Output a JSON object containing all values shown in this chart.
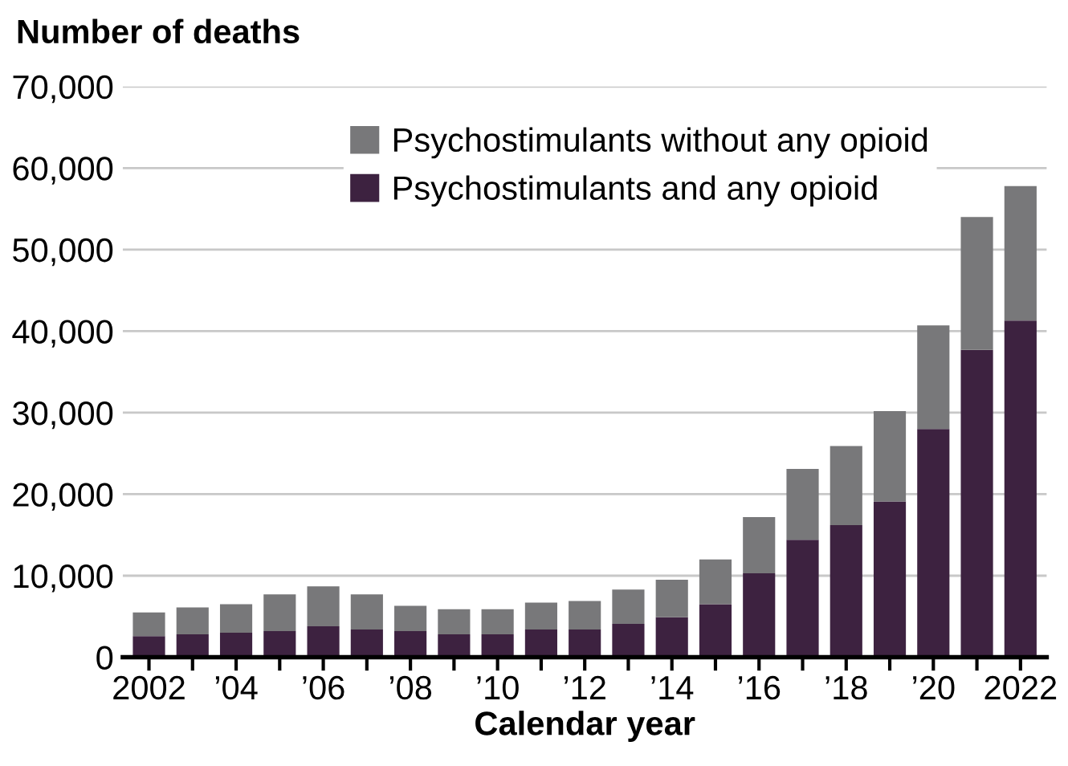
{
  "chart_data": {
    "type": "bar",
    "stacked": true,
    "ylabel": "Number of deaths",
    "xlabel": "Calendar year",
    "categories": [
      "2002",
      null,
      "’04",
      null,
      "’06",
      null,
      "’08",
      null,
      "’10",
      null,
      "’12",
      null,
      "’14",
      null,
      "’16",
      null,
      "’18",
      null,
      "’20",
      null,
      "2022"
    ],
    "series": [
      {
        "name": "Psychostimulants and any opioid",
        "color": "#3d2240",
        "values": [
          2600,
          2800,
          3000,
          3200,
          3800,
          3400,
          3200,
          2800,
          2800,
          3400,
          3400,
          4100,
          4900,
          6500,
          10300,
          14400,
          16200,
          19100,
          28000,
          37700,
          41300
        ]
      },
      {
        "name": "Psychostimulants without any opioid",
        "color": "#78787a",
        "values": [
          2900,
          3300,
          3500,
          4500,
          4900,
          4300,
          3100,
          3100,
          3100,
          3300,
          3500,
          4200,
          4600,
          5500,
          6900,
          8700,
          9700,
          11100,
          12700,
          16300,
          16500
        ]
      }
    ],
    "ylim": [
      0,
      70000
    ],
    "yticks": [
      {
        "value": 0,
        "label": "0"
      },
      {
        "value": 10000,
        "label": "10,000"
      },
      {
        "value": 20000,
        "label": "20,000"
      },
      {
        "value": 30000,
        "label": "30,000"
      },
      {
        "value": 40000,
        "label": "40,000"
      },
      {
        "value": 50000,
        "label": "50,000"
      },
      {
        "value": 60000,
        "label": "60,000"
      },
      {
        "value": 70000,
        "label": "70,000"
      }
    ],
    "grid": "y",
    "legend": "top"
  }
}
